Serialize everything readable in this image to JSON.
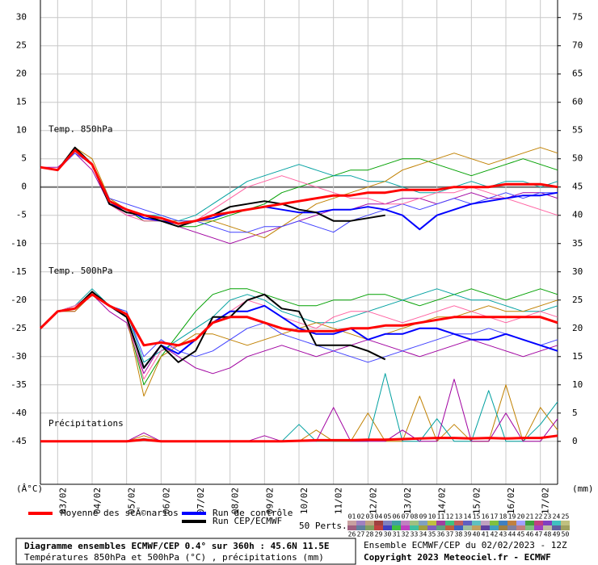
{
  "chart_data": {
    "type": "line",
    "title": "Diagramme ensembles ECMWF/CEP 0.4° sur 360h : 45.6N 11.5E",
    "subtitle": "Températures 850hPa et 500hPa (°C) , précipitations (mm)",
    "run_info": "Ensemble ECMWF/CEP du 02/02/2023 - 12Z",
    "copyright": "Copyright 2023 Meteociel.fr - ECMWF",
    "y_unit": "(Â°C)",
    "y2_unit": "(mm)",
    "perts_label": "50 Perts.",
    "grid": true,
    "xlim": [
      0,
      30
    ],
    "xticks": [
      {
        "value": 1,
        "label": "03/02"
      },
      {
        "value": 3,
        "label": "04/02"
      },
      {
        "value": 5,
        "label": "05/02"
      },
      {
        "value": 7,
        "label": "06/02"
      },
      {
        "value": 9,
        "label": "07/02"
      },
      {
        "value": 11,
        "label": "08/02"
      },
      {
        "value": 13,
        "label": "09/02"
      },
      {
        "value": 15,
        "label": "10/02"
      },
      {
        "value": 17,
        "label": "11/02"
      },
      {
        "value": 19,
        "label": "12/02"
      },
      {
        "value": 21,
        "label": "13/02"
      },
      {
        "value": 23,
        "label": "14/02"
      },
      {
        "value": 25,
        "label": "15/02"
      },
      {
        "value": 27,
        "label": "16/02"
      },
      {
        "value": 29,
        "label": "17/02"
      }
    ],
    "ylim": [
      -52.6,
      33.1
    ],
    "yticks": [
      -45,
      -40,
      -35,
      -30,
      -25,
      -20,
      -15,
      -10,
      -5,
      0,
      5,
      10,
      15,
      20,
      25,
      30
    ],
    "y2lim": [
      -7.6,
      78.1
    ],
    "y2ticks": [
      0,
      5,
      10,
      15,
      20,
      25,
      30,
      35,
      40,
      45,
      50,
      55,
      60,
      65,
      70,
      75
    ],
    "legend": [
      {
        "name": "Moyenne des scÃ©narios",
        "color": "#ff0000"
      },
      {
        "name": "Run de contrôle",
        "color": "#0000ff"
      },
      {
        "name": "Run CEP/ECMWF",
        "color": "#000000"
      }
    ],
    "pert_labels": [
      "01",
      "02",
      "03",
      "04",
      "05",
      "06",
      "07",
      "08",
      "09",
      "10",
      "11",
      "12",
      "13",
      "14",
      "15",
      "16",
      "17",
      "18",
      "19",
      "20",
      "21",
      "22",
      "23",
      "24",
      "25",
      "26",
      "27",
      "28",
      "29",
      "30",
      "31",
      "32",
      "33",
      "34",
      "35",
      "36",
      "37",
      "38",
      "39",
      "40",
      "41",
      "42",
      "43",
      "44",
      "45",
      "46",
      "47",
      "48",
      "49",
      "50"
    ],
    "pert_colors": [
      "#c8a0a0",
      "#a080c0",
      "#c0a080",
      "#a04040",
      "#8080c0",
      "#40a0a0",
      "#c080c0",
      "#a0c080",
      "#80a0c0",
      "#c0c040",
      "#a040a0",
      "#40c080",
      "#c06060",
      "#6060c0",
      "#60c0c0",
      "#c0a0c0",
      "#80c040",
      "#4080c0",
      "#c08040",
      "#a0a0ff",
      "#40a040",
      "#c04080",
      "#8040c0",
      "#40c0c0",
      "#c0c080",
      "#a06080",
      "#6080a0",
      "#80a060",
      "#c04040",
      "#4040c0",
      "#40c040",
      "#c040c0",
      "#40c0a0",
      "#a0a040",
      "#8060c0",
      "#60a080",
      "#c06040",
      "#4060c0",
      "#a0c0a0",
      "#c0a060",
      "#6040a0",
      "#40a0c0",
      "#a08040",
      "#8080a0",
      "#c08080",
      "#80c080",
      "#a040c0",
      "#c0c0a0",
      "#6060a0",
      "#a0a060"
    ],
    "groups": [
      {
        "label": "Temp. 850hPa",
        "series": [
          {
            "color": "#00a000",
            "values": [
              3.5,
              3,
              7,
              4,
              -3,
              -4,
              -6,
              -6,
              -7,
              -7,
              -6,
              -5,
              -4,
              -3,
              -1,
              0,
              1,
              2,
              3,
              3,
              4,
              5,
              5,
              4,
              3,
              2,
              3,
              4,
              5,
              4,
              3
            ]
          },
          {
            "color": "#a000a0",
            "values": [
              3.5,
              3.5,
              6,
              3,
              -3,
              -5,
              -5,
              -6,
              -7,
              -8,
              -9,
              -10,
              -9,
              -8,
              -7,
              -6,
              -5,
              -4,
              -4,
              -3,
              -3,
              -2,
              -2,
              -3,
              -2,
              -1,
              -2,
              -2,
              -1,
              -1,
              -2
            ]
          },
          {
            "color": "#00a0a0",
            "values": [
              3.5,
              3,
              6.5,
              4,
              -3,
              -4,
              -5,
              -5,
              -6,
              -5,
              -3,
              -1,
              1,
              2,
              3,
              4,
              3,
              2,
              2,
              1,
              1,
              0,
              -1,
              -1,
              0,
              1,
              0,
              1,
              1,
              0,
              1
            ]
          },
          {
            "color": "#c08000",
            "values": [
              3.5,
              3,
              7,
              5,
              -2,
              -4,
              -5,
              -6,
              -6,
              -6,
              -6,
              -7,
              -8,
              -9,
              -7,
              -5,
              -3,
              -2,
              -1,
              0,
              1,
              3,
              4,
              5,
              6,
              5,
              4,
              5,
              6,
              7,
              6
            ]
          },
          {
            "color": "#4040ff",
            "values": [
              3.5,
              3,
              6,
              4,
              -2,
              -3,
              -4,
              -5,
              -6,
              -6,
              -7,
              -8,
              -8,
              -7,
              -7,
              -6,
              -7,
              -8,
              -6,
              -5,
              -4,
              -3,
              -4,
              -3,
              -2,
              -3,
              -2,
              -1,
              -2,
              -1,
              -1
            ]
          },
          {
            "color": "#ff60a0",
            "values": [
              3.5,
              3,
              7,
              4,
              -3,
              -5,
              -6,
              -6,
              -7,
              -6,
              -4,
              -2,
              0,
              1,
              2,
              1,
              0,
              -1,
              -2,
              -2,
              -3,
              -3,
              -2,
              -1,
              -1,
              0,
              -1,
              -2,
              -3,
              -4,
              -5
            ]
          },
          {
            "color": "#0000ff",
            "width": 2,
            "values": [
              3.5,
              3,
              6.5,
              4,
              -3,
              -4,
              -5.5,
              -6,
              -6.5,
              -6,
              -5.5,
              -4.5,
              -4,
              -3.5,
              -4,
              -4.5,
              -4.5,
              -4,
              -4,
              -3.5,
              -4,
              -5,
              -7.5,
              -5,
              -4,
              -3,
              -2.5,
              -2,
              -1.5,
              -1.5,
              -1
            ]
          },
          {
            "color": "#000000",
            "width": 2,
            "values": [
              3.5,
              3,
              7,
              4,
              -3,
              -4.5,
              -5,
              -6,
              -7,
              -6,
              -5,
              -3.5,
              -3,
              -2.5,
              -3,
              -4,
              -4.5,
              -6,
              -6,
              -5.5,
              -5,
              null,
              null,
              null,
              null,
              null,
              null,
              null,
              null,
              null,
              null
            ]
          },
          {
            "color": "#ff0000",
            "width": 3,
            "values": [
              3.5,
              3,
              6.5,
              4,
              -2.5,
              -4,
              -5,
              -5.5,
              -6.5,
              -6,
              -5,
              -4.5,
              -4,
              -3.5,
              -3,
              -2.5,
              -2,
              -1.5,
              -1.5,
              -1,
              -1,
              -0.5,
              -0.5,
              -0.5,
              0,
              0,
              0,
              0.5,
              0.5,
              0.5,
              0
            ]
          }
        ]
      },
      {
        "label": "Temp. 500hPa",
        "series": [
          {
            "color": "#00a000",
            "values": [
              -25,
              -22,
              -21,
              -19,
              -21,
              -23,
              -35,
              -30,
              -26,
              -22,
              -19,
              -18,
              -18,
              -19,
              -20,
              -21,
              -21,
              -20,
              -20,
              -19,
              -19,
              -20,
              -21,
              -20,
              -19,
              -18,
              -19,
              -20,
              -19,
              -18,
              -19
            ]
          },
          {
            "color": "#a000a0",
            "values": [
              -25,
              -22,
              -22,
              -19,
              -22,
              -24,
              -33,
              -28,
              -30,
              -32,
              -33,
              -32,
              -30,
              -29,
              -28,
              -29,
              -30,
              -29,
              -28,
              -27,
              -28,
              -29,
              -30,
              -29,
              -28,
              -27,
              -28,
              -29,
              -30,
              -29,
              -28
            ]
          },
          {
            "color": "#00a0a0",
            "values": [
              -25,
              -22,
              -21,
              -18,
              -21,
              -22,
              -31,
              -29,
              -27,
              -25,
              -23,
              -20,
              -19,
              -20,
              -22,
              -23,
              -24,
              -24,
              -23,
              -22,
              -21,
              -20,
              -19,
              -18,
              -19,
              -20,
              -20,
              -21,
              -22,
              -22,
              -21
            ]
          },
          {
            "color": "#c08000",
            "values": [
              -25,
              -22,
              -22,
              -19,
              -21,
              -23,
              -37,
              -30,
              -28,
              -26,
              -26,
              -27,
              -28,
              -27,
              -26,
              -25,
              -24,
              -25,
              -26,
              -27,
              -26,
              -25,
              -24,
              -23,
              -23,
              -22,
              -21,
              -22,
              -22,
              -21,
              -20
            ]
          },
          {
            "color": "#4040ff",
            "values": [
              -25,
              -22,
              -21,
              -19,
              -21,
              -22,
              -30,
              -27,
              -29,
              -30,
              -29,
              -27,
              -25,
              -24,
              -26,
              -27,
              -28,
              -29,
              -30,
              -31,
              -30,
              -29,
              -28,
              -27,
              -26,
              -26,
              -25,
              -26,
              -27,
              -28,
              -27
            ]
          },
          {
            "color": "#ff60a0",
            "values": [
              -25,
              -22,
              -21,
              -19,
              -21,
              -23,
              -34,
              -29,
              -28,
              -27,
              -24,
              -22,
              -20,
              -21,
              -23,
              -24,
              -25,
              -23,
              -22,
              -22,
              -23,
              -24,
              -23,
              -22,
              -21,
              -22,
              -23,
              -24,
              -23,
              -22,
              -23
            ]
          },
          {
            "color": "#0000ff",
            "width": 2,
            "values": [
              -25,
              -22,
              -21.5,
              -19,
              -21,
              -23,
              -32,
              -28,
              -29.5,
              -27,
              -24,
              -22,
              -22,
              -21,
              -23,
              -25,
              -26,
              -26,
              -25,
              -27,
              -26,
              -26,
              -25,
              -25,
              -26,
              -27,
              -27,
              -26,
              -27,
              -28,
              -29
            ]
          },
          {
            "color": "#000000",
            "width": 2,
            "values": [
              -25,
              -22,
              -21.5,
              -18.5,
              -21,
              -23,
              -32,
              -28,
              -31,
              -29,
              -23,
              -23,
              -20,
              -19,
              -21.5,
              -22,
              -28,
              -28,
              -28,
              -29,
              -30.5,
              null,
              null,
              null,
              null,
              null,
              null,
              null,
              null,
              null,
              null
            ]
          },
          {
            "color": "#ff0000",
            "width": 3,
            "values": [
              -25,
              -22,
              -21.5,
              -19,
              -21,
              -22.5,
              -28,
              -27.5,
              -28,
              -27,
              -24,
              -23,
              -23,
              -24,
              -25,
              -25.5,
              -25.5,
              -25.5,
              -25,
              -25,
              -24.5,
              -24.5,
              -24,
              -23.5,
              -23,
              -23,
              -23,
              -23,
              -23,
              -23,
              -24
            ]
          }
        ]
      },
      {
        "label": "Précipitations",
        "axis": "y2",
        "series": [
          {
            "color": "#c08000",
            "values": [
              0,
              0,
              0,
              0,
              0,
              0,
              1,
              0,
              0,
              0,
              0,
              0,
              0,
              0,
              0,
              0,
              2,
              0,
              0,
              5,
              0,
              0,
              8,
              0,
              3,
              0,
              0,
              10,
              0,
              6,
              2
            ]
          },
          {
            "color": "#00a0a0",
            "values": [
              0,
              0,
              0,
              0,
              0,
              0,
              0.5,
              0,
              0,
              0,
              0,
              0,
              0,
              0,
              0,
              3,
              0,
              0,
              0,
              0,
              12,
              0,
              0,
              4,
              0,
              0,
              9,
              0,
              0,
              3,
              7
            ]
          },
          {
            "color": "#a000a0",
            "values": [
              0,
              0,
              0,
              0,
              0,
              0,
              1.5,
              0,
              0,
              0,
              0,
              0,
              0,
              1,
              0,
              0,
              0,
              6,
              0,
              0,
              0,
              2,
              0,
              0,
              11,
              0,
              0,
              5,
              0,
              0,
              4
            ]
          },
          {
            "color": "#ff0000",
            "width": 3,
            "values": [
              0,
              0,
              0,
              0,
              0,
              0,
              0.3,
              0,
              0,
              0,
              0,
              0,
              0,
              0,
              0,
              0.1,
              0.2,
              0.2,
              0.2,
              0.3,
              0.3,
              0.4,
              0.5,
              0.6,
              0.6,
              0.5,
              0.6,
              0.5,
              0.6,
              0.6,
              1.0
            ]
          }
        ]
      }
    ]
  }
}
